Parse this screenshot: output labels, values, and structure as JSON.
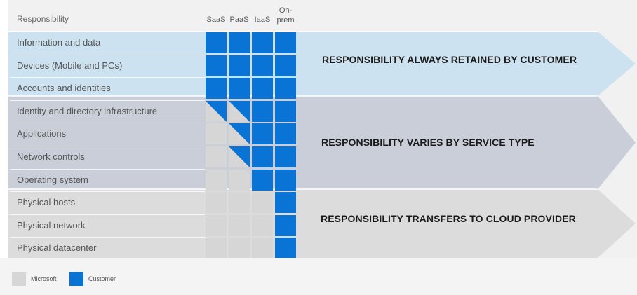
{
  "colors": {
    "customer": "#0a74d6",
    "microsoft": "#d6d6d6",
    "band_customer": "#cde2f0",
    "band_varies": "#c9ced9",
    "band_cloud": "#dcdcdc"
  },
  "header": {
    "responsibility": "Responsibility",
    "columns": [
      "SaaS",
      "PaaS",
      "IaaS",
      "On-\nprem"
    ]
  },
  "rows": [
    {
      "label": "Information and data",
      "cells": [
        "C",
        "C",
        "C",
        "C"
      ]
    },
    {
      "label": "Devices (Mobile and PCs)",
      "cells": [
        "C",
        "C",
        "C",
        "C"
      ]
    },
    {
      "label": "Accounts and identities",
      "cells": [
        "C",
        "C",
        "C",
        "C"
      ]
    },
    {
      "label": "Identity and directory infrastructure",
      "cells": [
        "S",
        "S",
        "C",
        "C"
      ]
    },
    {
      "label": "Applications",
      "cells": [
        "M",
        "S",
        "C",
        "C"
      ]
    },
    {
      "label": "Network controls",
      "cells": [
        "M",
        "S",
        "C",
        "C"
      ]
    },
    {
      "label": "Operating system",
      "cells": [
        "M",
        "M",
        "C",
        "C"
      ]
    },
    {
      "label": "Physical hosts",
      "cells": [
        "M",
        "M",
        "M",
        "C"
      ]
    },
    {
      "label": "Physical network",
      "cells": [
        "M",
        "M",
        "M",
        "C"
      ]
    },
    {
      "label": "Physical datacenter",
      "cells": [
        "M",
        "M",
        "M",
        "C"
      ]
    }
  ],
  "bands": [
    {
      "label": "RESPONSIBILITY ALWAYS RETAINED BY CUSTOMER"
    },
    {
      "label": "RESPONSIBILITY VARIES BY SERVICE TYPE"
    },
    {
      "label": "RESPONSIBILITY TRANSFERS TO CLOUD PROVIDER"
    }
  ],
  "legend": {
    "microsoft": "Microsoft",
    "customer": "Customer"
  }
}
